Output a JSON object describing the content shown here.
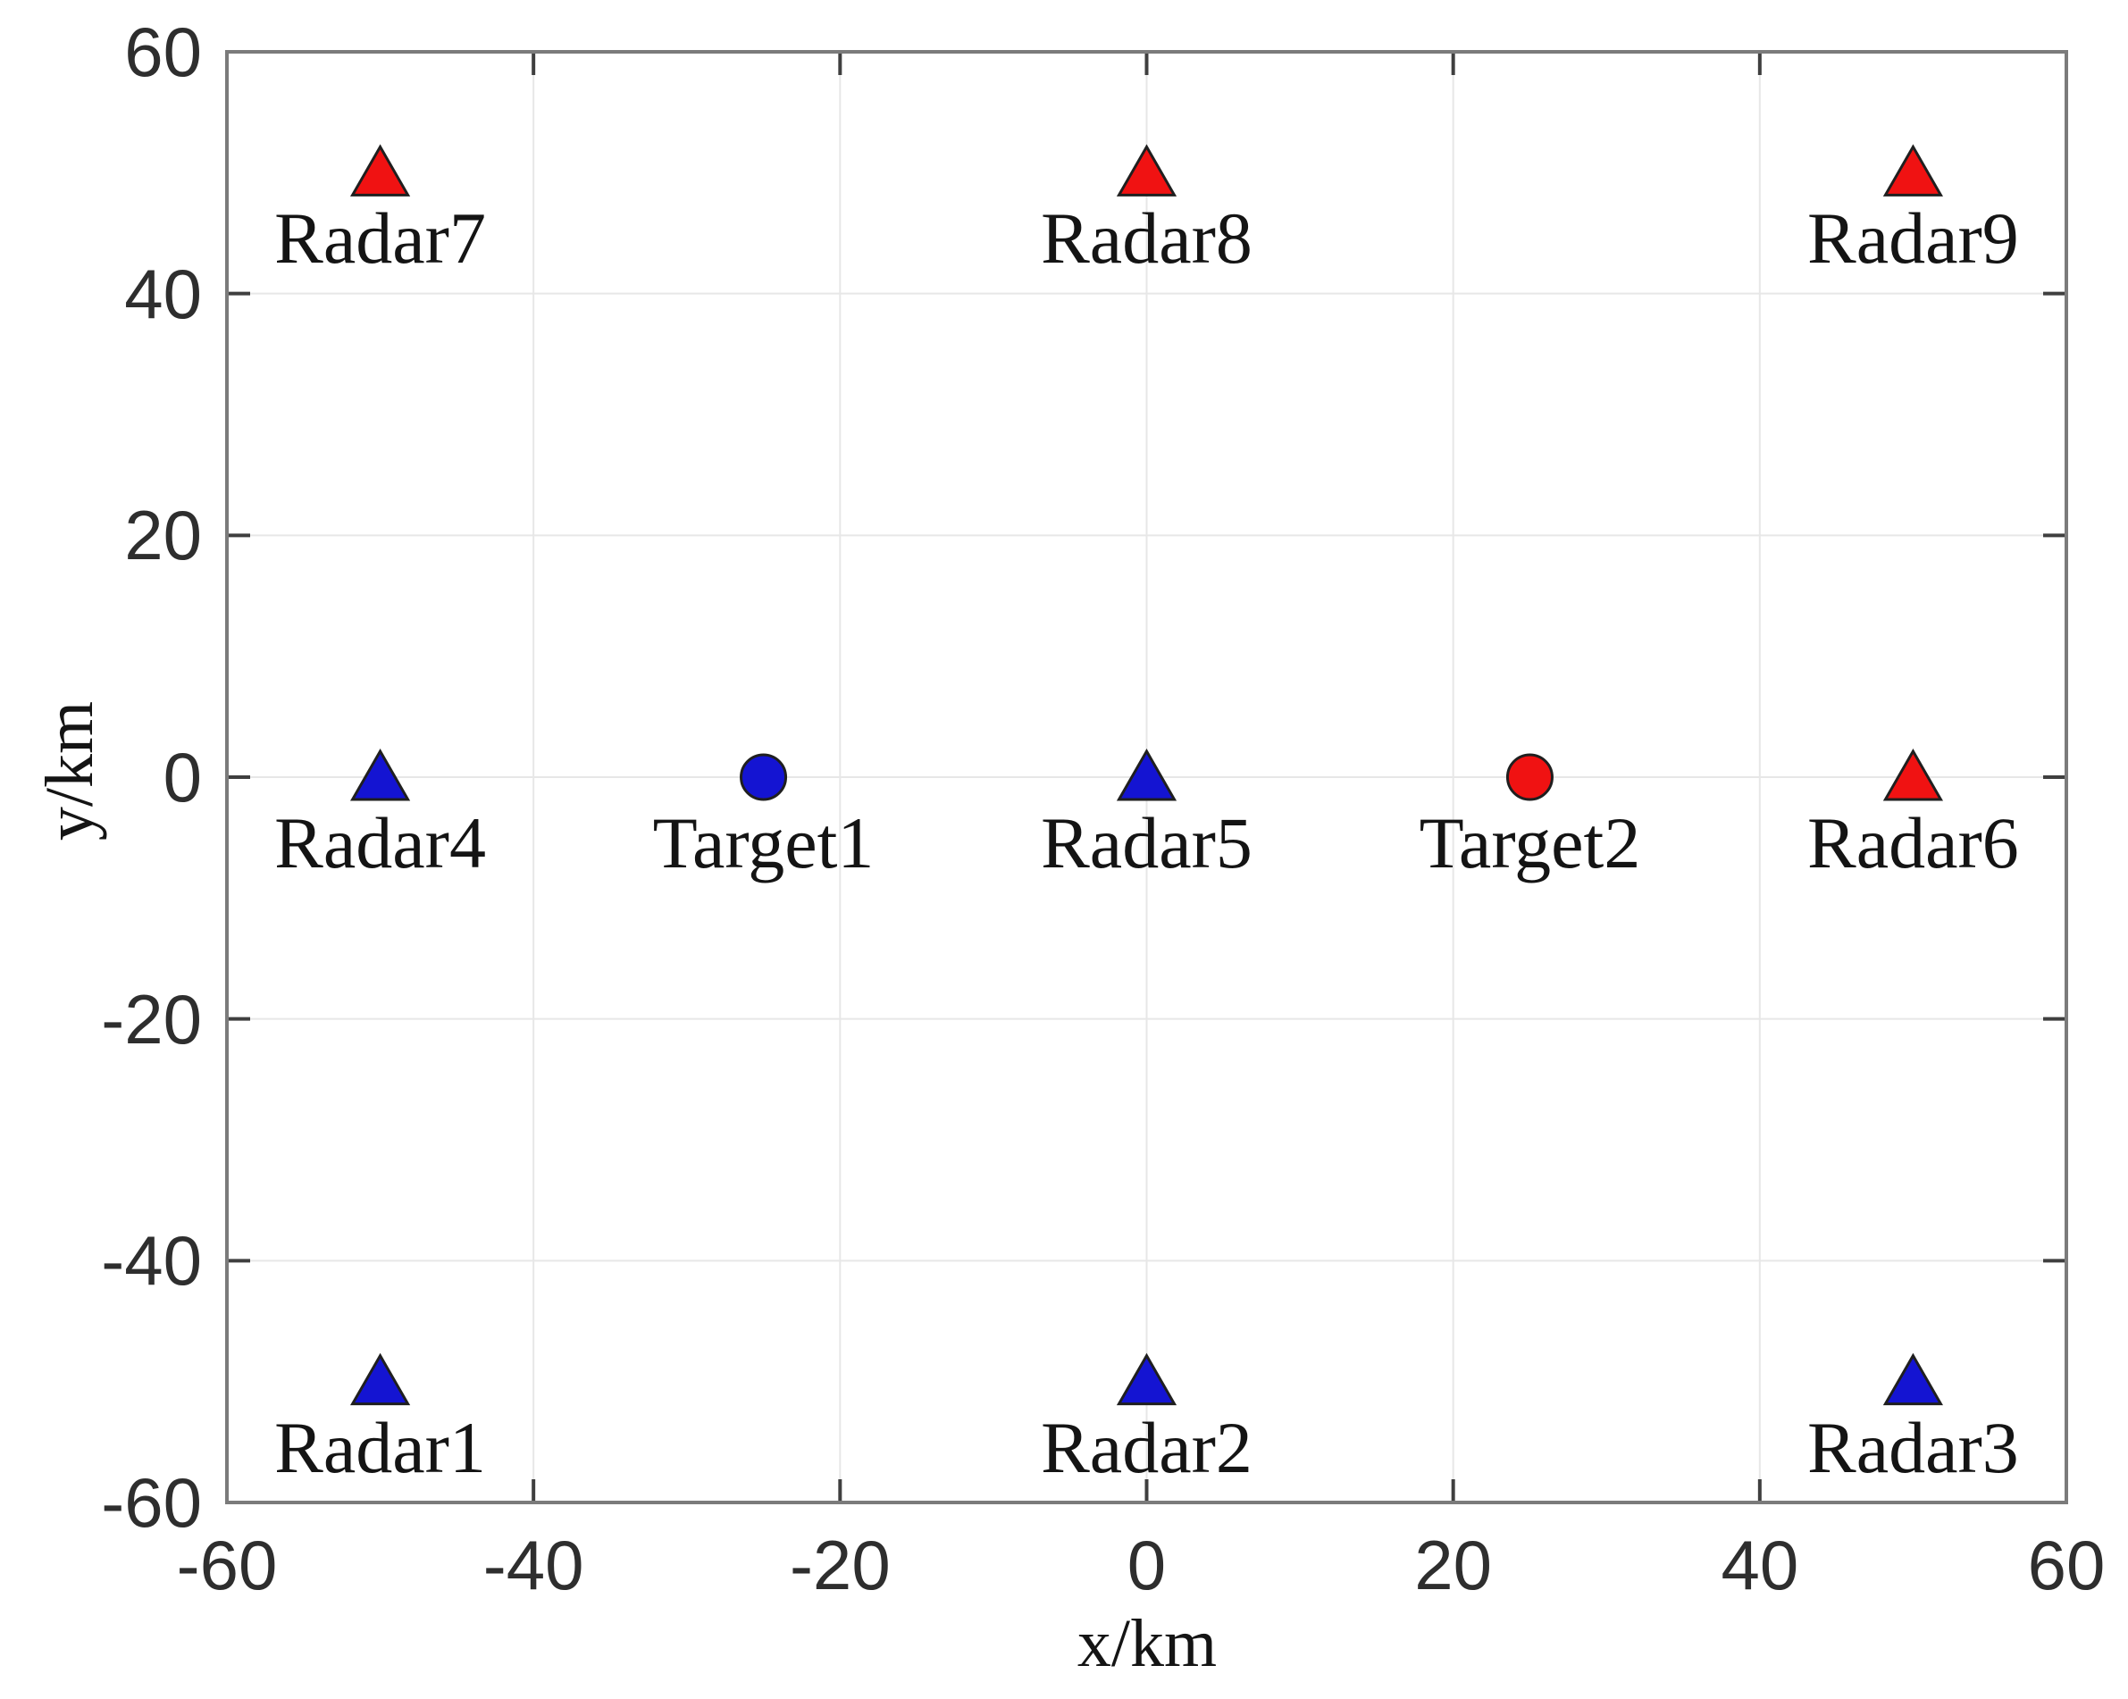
{
  "figure": {
    "background": "#ffffff"
  },
  "chart_data": {
    "type": "scatter",
    "title": "",
    "xlabel": "x/km",
    "ylabel": "y/km",
    "xlim": [
      -60,
      60
    ],
    "ylim": [
      -60,
      60
    ],
    "xticks": [
      -60,
      -40,
      -20,
      0,
      20,
      40,
      60
    ],
    "yticks": [
      -60,
      -40,
      -20,
      0,
      20,
      40,
      60
    ],
    "xticklabels": [
      "-60",
      "-40",
      "-20",
      "0",
      "20",
      "40",
      "60"
    ],
    "yticklabels": [
      "-60",
      "-40",
      "-20",
      "0",
      "20",
      "40",
      "60"
    ],
    "grid": true,
    "legend": "none",
    "colors": {
      "radar_blue": "#1414d2",
      "radar_red": "#f01212",
      "marker_edge": "#1f1f1f",
      "grid_line": "#e7e7e7",
      "axes_box": "#7b7b7b",
      "tick_mark": "#3f3f3f",
      "tick_text": "#2e2e2e",
      "label_text": "#141414"
    },
    "series": [
      {
        "name": "blue radars",
        "marker": "triangle",
        "color_key": "radar_blue",
        "points": [
          {
            "label": "Radar1",
            "x": -50,
            "y": -50
          },
          {
            "label": "Radar2",
            "x": 0,
            "y": -50
          },
          {
            "label": "Radar3",
            "x": 50,
            "y": -50
          },
          {
            "label": "Radar4",
            "x": -50,
            "y": 0
          },
          {
            "label": "Radar5",
            "x": 0,
            "y": 0
          }
        ]
      },
      {
        "name": "red radars",
        "marker": "triangle",
        "color_key": "radar_red",
        "points": [
          {
            "label": "Radar6",
            "x": 50,
            "y": 0
          },
          {
            "label": "Radar7",
            "x": -50,
            "y": 50
          },
          {
            "label": "Radar8",
            "x": 0,
            "y": 50
          },
          {
            "label": "Radar9",
            "x": 50,
            "y": 50
          }
        ]
      },
      {
        "name": "blue target",
        "marker": "circle",
        "color_key": "radar_blue",
        "points": [
          {
            "label": "Target1",
            "x": -25,
            "y": 0
          }
        ]
      },
      {
        "name": "red target",
        "marker": "circle",
        "color_key": "radar_red",
        "points": [
          {
            "label": "Target2",
            "x": 25,
            "y": 0
          }
        ]
      }
    ]
  }
}
